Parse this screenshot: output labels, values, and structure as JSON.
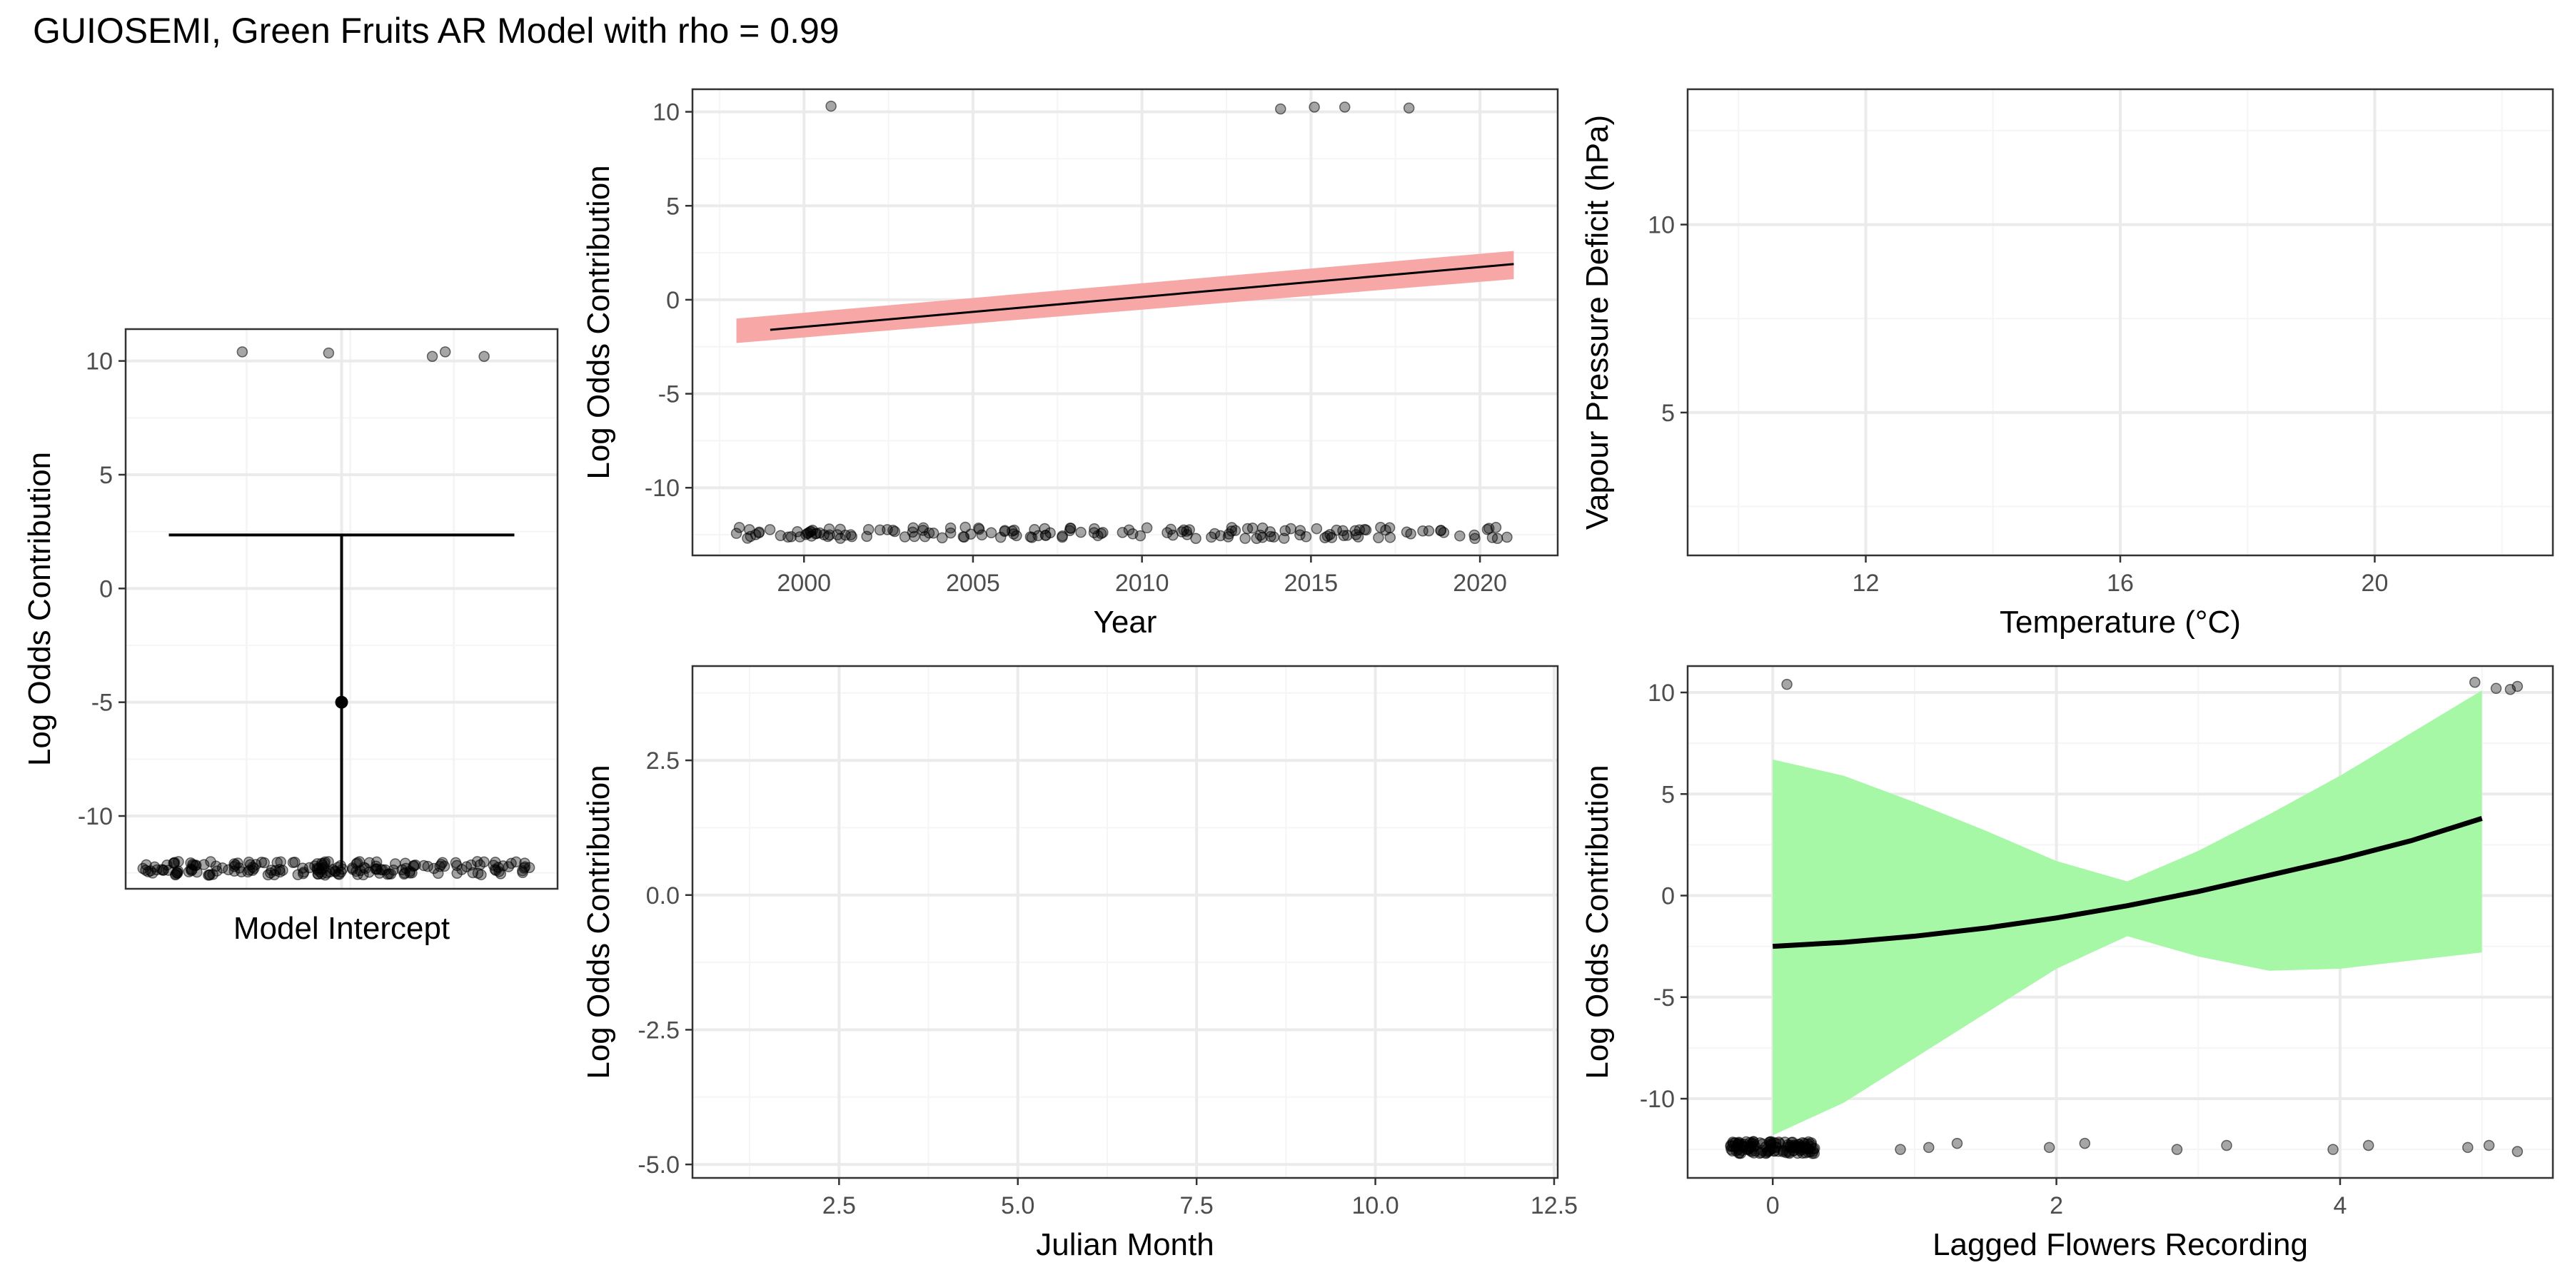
{
  "title": "GUIOSEMI, Green Fruits AR Model with rho = 0.99",
  "colors": {
    "panel_border": "#333333",
    "grid_major": "#ebebeb",
    "grid_minor": "#f5f5f5",
    "tick_text": "#4d4d4d",
    "points": "#000000",
    "year_ribbon": "#f8a7a7",
    "lagged_ribbon": "#a6f7a6"
  },
  "chart_data": [
    {
      "id": "intercept",
      "type": "scatter",
      "xlabel": "Model Intercept",
      "ylabel": "Log Odds Contribution",
      "ylim": [
        -13.2,
        11.4
      ],
      "y_ticks": [
        10,
        5,
        0,
        -5,
        -10
      ],
      "y_tick_labels": [
        "10",
        "5",
        "0",
        "-5",
        "-10"
      ],
      "x_ticks": [],
      "x_tick_labels": [],
      "grid": true,
      "estimate": {
        "y": -5.0,
        "ci_low": -12.3,
        "ci_high": 2.35
      },
      "points_low": {
        "y": -12.3,
        "count": 180
      },
      "points_high": [
        10.4,
        10.35,
        10.2,
        10.4,
        10.2
      ]
    },
    {
      "id": "year",
      "type": "line",
      "xlabel": "Year",
      "ylabel": "Log Odds Contribution",
      "xlim": [
        1996.7,
        2022.3
      ],
      "ylim": [
        -13.6,
        11.2
      ],
      "x_ticks": [
        2000,
        2005,
        2010,
        2015,
        2020
      ],
      "x_tick_labels": [
        "2000",
        "2005",
        "2010",
        "2015",
        "2020"
      ],
      "y_ticks": [
        10,
        5,
        0,
        -5,
        -10
      ],
      "y_tick_labels": [
        "10",
        "5",
        "0",
        "-5",
        "-10"
      ],
      "grid": true,
      "line": {
        "x": [
          1999,
          2021
        ],
        "y": [
          -1.6,
          1.9
        ]
      },
      "ribbon": {
        "x": [
          1998,
          2021
        ],
        "upper": [
          -1.0,
          2.6
        ],
        "lower": [
          -2.3,
          1.1
        ]
      },
      "points_low": {
        "y": -12.4,
        "x_from": 1998,
        "x_to": 2021,
        "count": 160
      },
      "points_high": [
        [
          2000.8,
          10.3
        ],
        [
          2014.1,
          10.15
        ],
        [
          2015.1,
          10.25
        ],
        [
          2016.0,
          10.25
        ],
        [
          2017.9,
          10.2
        ]
      ]
    },
    {
      "id": "temperature",
      "type": "scatter",
      "xlabel": "Temperature (°C)",
      "ylabel": "Vapour Pressure Deficit (hPa)",
      "xlim": [
        9.2,
        22.8
      ],
      "ylim": [
        1.2,
        13.6
      ],
      "x_ticks": [
        12,
        16,
        20
      ],
      "x_tick_labels": [
        "12",
        "16",
        "20"
      ],
      "y_ticks": [
        5,
        10
      ],
      "y_tick_labels": [
        "5",
        "10"
      ],
      "grid": true
    },
    {
      "id": "julian_month",
      "type": "scatter",
      "xlabel": "Julian Month",
      "ylabel": "Log Odds Contribution",
      "xlim": [
        0.45,
        12.55
      ],
      "ylim": [
        -5.25,
        4.25
      ],
      "x_ticks": [
        2.5,
        5.0,
        7.5,
        10.0,
        12.5
      ],
      "x_tick_labels": [
        "2.5",
        "5.0",
        "7.5",
        "10.0",
        "12.5"
      ],
      "y_ticks": [
        2.5,
        0.0,
        -2.5,
        -5.0
      ],
      "y_tick_labels": [
        "2.5",
        "0.0",
        "-2.5",
        "-5.0"
      ],
      "grid": true
    },
    {
      "id": "lagged_flowers",
      "type": "line",
      "xlabel": "Lagged Flowers Recording",
      "ylabel": "Log Odds Contribution",
      "xlim": [
        -0.6,
        5.5
      ],
      "ylim": [
        -13.9,
        11.3
      ],
      "x_ticks": [
        0,
        2,
        4
      ],
      "x_tick_labels": [
        "0",
        "2",
        "4"
      ],
      "y_ticks": [
        10,
        5,
        0,
        -5,
        -10
      ],
      "y_tick_labels": [
        "10",
        "5",
        "0",
        "-5",
        "-10"
      ],
      "grid": true,
      "line": {
        "x": [
          0,
          0.5,
          1,
          1.5,
          2,
          2.5,
          3,
          3.5,
          4,
          4.5,
          5
        ],
        "y": [
          -2.5,
          -2.3,
          -2.0,
          -1.6,
          -1.1,
          -0.5,
          0.2,
          1.0,
          1.8,
          2.7,
          3.8
        ]
      },
      "ribbon": {
        "x": [
          0,
          0.5,
          1,
          1.5,
          2,
          2.5,
          3,
          3.5,
          4,
          4.5,
          5
        ],
        "upper": [
          6.7,
          5.9,
          4.6,
          3.2,
          1.7,
          0.7,
          2.2,
          4.0,
          5.9,
          8.0,
          10.1
        ],
        "lower": [
          -11.8,
          -10.2,
          -8.0,
          -5.8,
          -3.6,
          -2.0,
          -3.0,
          -3.7,
          -3.6,
          -3.2,
          -2.8
        ]
      },
      "points_low": {
        "y": -12.4,
        "x_from": -0.3,
        "x_to": 0.3,
        "count": 120
      },
      "points_scattered": [
        [
          0.9,
          -12.5
        ],
        [
          1.1,
          -12.4
        ],
        [
          1.3,
          -12.2
        ],
        [
          1.95,
          -12.4
        ],
        [
          2.2,
          -12.2
        ],
        [
          2.85,
          -12.5
        ],
        [
          3.2,
          -12.3
        ],
        [
          3.95,
          -12.5
        ],
        [
          4.2,
          -12.3
        ],
        [
          4.9,
          -12.4
        ],
        [
          5.05,
          -12.3
        ],
        [
          5.25,
          -12.6
        ]
      ],
      "points_high": [
        [
          0.1,
          10.4
        ],
        [
          4.95,
          10.5
        ],
        [
          5.1,
          10.2
        ],
        [
          5.2,
          10.15
        ],
        [
          5.25,
          10.3
        ]
      ]
    }
  ]
}
